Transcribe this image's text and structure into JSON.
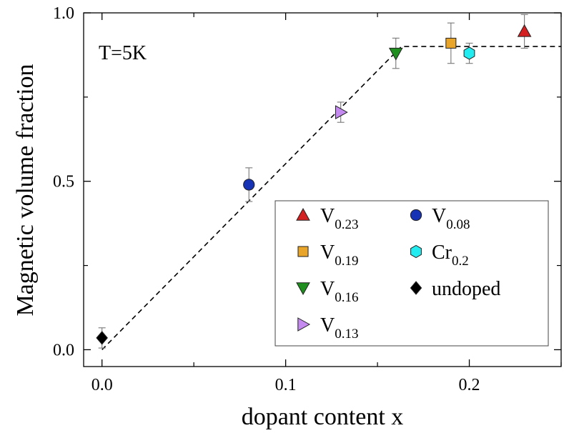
{
  "chart_data": {
    "type": "scatter",
    "title": "",
    "xlabel": "dopant content x",
    "ylabel": "Magnetic volume fraction",
    "xlim": [
      -0.01,
      0.25
    ],
    "ylim": [
      -0.05,
      1.0
    ],
    "x_major_ticks": [
      0.0,
      0.1,
      0.2
    ],
    "x_major_tick_labels": [
      "0.0",
      "0.1",
      "0.2"
    ],
    "x_minor_ticks": [
      0.05,
      0.15,
      0.25
    ],
    "y_major_ticks": [
      0.0,
      0.5,
      1.0
    ],
    "y_major_tick_labels": [
      "0.0",
      "0.5",
      "1.0"
    ],
    "y_minor_ticks": [
      0.25,
      0.75
    ],
    "annotation": "T=5K",
    "legend_position": "bottom-right",
    "series": [
      {
        "name": "V0.23",
        "label_main": "V",
        "label_sub": "0.23",
        "marker": "triangle-up",
        "color": "#d42020",
        "x": 0.23,
        "y": 0.945,
        "err": 0.05
      },
      {
        "name": "V0.19",
        "label_main": "V",
        "label_sub": "0.19",
        "marker": "square",
        "color": "#e9a52a",
        "x": 0.19,
        "y": 0.91,
        "err": 0.06
      },
      {
        "name": "V0.16",
        "label_main": "V",
        "label_sub": "0.16",
        "marker": "triangle-down",
        "color": "#1f8f1f",
        "x": 0.16,
        "y": 0.88,
        "err": 0.045
      },
      {
        "name": "V0.13",
        "label_main": "V",
        "label_sub": "0.13",
        "marker": "triangle-right",
        "color": "#c58af0",
        "x": 0.13,
        "y": 0.705,
        "err": 0.03
      },
      {
        "name": "V0.08",
        "label_main": "V",
        "label_sub": "0.08",
        "marker": "circle",
        "color": "#1633b5",
        "x": 0.08,
        "y": 0.49,
        "err": 0.05
      },
      {
        "name": "Cr0.2",
        "label_main": "Cr",
        "label_sub": "0.2",
        "marker": "hexagon",
        "color": "#22ecf0",
        "x": 0.2,
        "y": 0.88,
        "err": 0.03
      },
      {
        "name": "undoped",
        "label_main": "undoped",
        "label_sub": "",
        "marker": "diamond",
        "color": "#000000",
        "x": 0.0,
        "y": 0.035,
        "err": 0.03
      }
    ],
    "guide_line": {
      "style": "dashed",
      "points": [
        [
          0.0,
          0.0
        ],
        [
          0.163,
          0.9
        ],
        [
          0.25,
          0.9
        ]
      ]
    }
  }
}
